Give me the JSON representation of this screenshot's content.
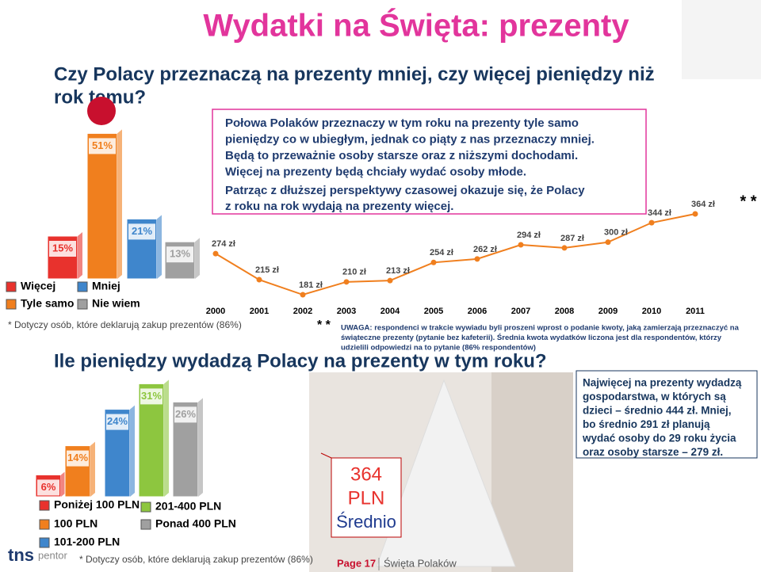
{
  "header": {
    "title": "Wydatki na Święta: prezenty",
    "question": [
      "Czy Polacy przeznaczą na prezenty mniej, czy więcej pieniędzy niż",
      "rok temu?"
    ]
  },
  "text_box": {
    "paragraph1": [
      "Połowa Polaków przeznaczy w tym roku na prezenty tyle samo",
      "pieniędzy co w ubiegłym, jednak co piąty z nas przeznaczy mniej.",
      "Będą to przeważnie osoby starsze oraz z niższymi dochodami.",
      "Więcej na prezenty będą chciały wydać osoby młode."
    ],
    "paragraph2": [
      "Patrząc z dłuższej perspektywy czasowej okazuje się, że Polacy",
      "z roku na rok wydają na prezenty więcej."
    ]
  },
  "footnote1": "* Dotyczy osób, które deklarują zakup prezentów (86%)",
  "note_marker": "* *",
  "note": [
    "UWAGA: respondenci w trakcie wywiadu byli proszeni wprost o podanie kwoty, jaką zamierzają przeznaczyć na",
    "świąteczne prezenty (pytanie bez kafeterii). Średnia kwota wydatków liczona jest dla respondentów, którzy",
    "udzielili odpowiedzi na to pytanie (86% respondentów)"
  ],
  "heading2": "Ile pieniędzy wydadzą Polacy na prezenty w tym roku?",
  "right_box": [
    "Najwięcej na prezenty wydadzą",
    "gospodarstwa, w których są",
    "dzieci – średnio 444 zł. Mniej,",
    "bo średnio 291 zł planują",
    "wydać osoby do 29 roku życia",
    "oraz osoby starsze – 279 zł."
  ],
  "tag": [
    "364",
    "PLN",
    "Średnio"
  ],
  "footnote2": "* Dotyczy osób, które deklarują zakup prezentów (86%)",
  "footer": {
    "page": "Page 17",
    "section": "Święta Polaków",
    "logo": "tns",
    "logo2": "pentor"
  },
  "chart_data": [
    {
      "type": "bar",
      "categories": [
        "Więcej",
        "Tyle samo",
        "Mniej",
        "Nie wiem"
      ],
      "values": [
        15,
        51,
        21,
        13
      ],
      "value_labels": [
        "15%",
        "51%",
        "21%",
        "13%"
      ],
      "colors": [
        "#e8322d",
        "#f07f1e",
        "#3f86cc",
        "#a0a0a0"
      ]
    },
    {
      "type": "line",
      "x": [
        2000,
        2001,
        2002,
        2003,
        2004,
        2005,
        2006,
        2007,
        2008,
        2009,
        2010,
        2011
      ],
      "values": [
        274,
        215,
        181,
        210,
        213,
        254,
        262,
        294,
        287,
        300,
        344,
        364
      ],
      "value_labels": [
        "274 zł",
        "215 zł",
        "181 zł",
        "210 zł",
        "213 zł",
        "254 zł",
        "262 zł",
        "294 zł",
        "287 zł",
        "300 zł",
        "344 zł",
        "364 zł"
      ],
      "color": "#f07f1e",
      "annotation": "* *"
    },
    {
      "type": "bar",
      "categories": [
        "Poniżej 100 PLN",
        "100 PLN",
        "101-200 PLN",
        "201-400 PLN",
        "Ponad 400 PLN"
      ],
      "values": [
        6,
        14,
        24,
        31,
        26
      ],
      "value_labels": [
        "6%",
        "14%",
        "24%",
        "31%",
        "26%"
      ],
      "colors": [
        "#e8322d",
        "#f07f1e",
        "#3f86cc",
        "#8dc63f",
        "#a0a0a0"
      ]
    }
  ]
}
